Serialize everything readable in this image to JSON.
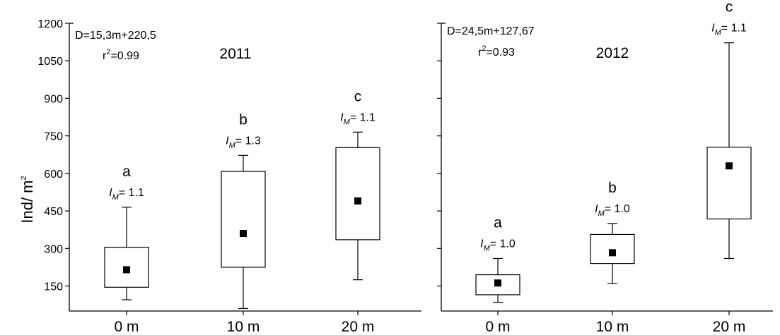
{
  "chart_data": {
    "type": "box",
    "ylabel": "Ind/ m",
    "ylabel_sup": "2",
    "y_ticks": [
      "150",
      "300",
      "450",
      "600",
      "750",
      "900",
      "1050",
      "1200"
    ],
    "ylim": [
      50,
      1200
    ],
    "panels": [
      {
        "title": "2011",
        "equation": "D=15,3m+220,5",
        "r2_label": "r",
        "r2_sup": "2",
        "r2_value": "=0.99",
        "categories": [
          "0 m",
          "10 m",
          "20 m"
        ],
        "boxes": [
          {
            "min": 95,
            "q1": 145,
            "q3": 305,
            "max": 465,
            "mean": 215,
            "group": "a",
            "im_sym": "I",
            "im_sub": "M",
            "im_val": "= 1.1"
          },
          {
            "min": 60,
            "q1": 225,
            "q3": 608,
            "max": 672,
            "mean": 360,
            "group": "b",
            "im_sym": "I",
            "im_sub": "M",
            "im_val": "= 1.3"
          },
          {
            "min": 175,
            "q1": 335,
            "q3": 703,
            "max": 765,
            "mean": 490,
            "group": "c",
            "im_sym": "I",
            "im_sub": "M",
            "im_val": "= 1.1"
          }
        ]
      },
      {
        "title": "2012",
        "equation": "D=24,5m+127,67",
        "r2_label": "r",
        "r2_sup": "2",
        "r2_value": "=0.93",
        "categories": [
          "0 m",
          "10 m",
          "20 m"
        ],
        "boxes": [
          {
            "min": 85,
            "q1": 115,
            "q3": 195,
            "max": 260,
            "mean": 162,
            "group": "a",
            "im_sym": "I",
            "im_sub": "M",
            "im_val": "= 1.0"
          },
          {
            "min": 160,
            "q1": 240,
            "q3": 356,
            "max": 400,
            "mean": 283,
            "group": "b",
            "im_sym": "I",
            "im_sub": "M",
            "im_val": "= 1.0"
          },
          {
            "min": 260,
            "q1": 418,
            "q3": 705,
            "max": 1122,
            "mean": 630,
            "group": "c",
            "im_sym": "I",
            "im_sub": "M",
            "im_val": "= 1.1"
          }
        ]
      }
    ]
  }
}
